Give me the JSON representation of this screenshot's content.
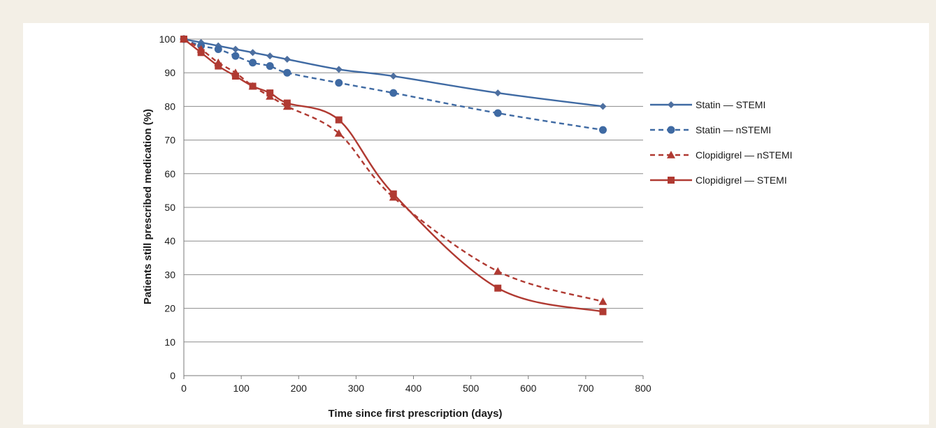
{
  "chart_data": {
    "type": "line",
    "xlabel": "Time since first prescription (days)",
    "ylabel": "Patients still prescribed medication (%)",
    "xlim": [
      0,
      800
    ],
    "ylim": [
      0,
      100
    ],
    "xticks": [
      "0",
      "100",
      "200",
      "300",
      "400",
      "500",
      "600",
      "700",
      "800"
    ],
    "yticks": [
      "0",
      "10",
      "20",
      "30",
      "40",
      "50",
      "60",
      "70",
      "80",
      "90",
      "100"
    ],
    "grid": "horizontal",
    "legend_position": "right",
    "series": [
      {
        "name": "Statin — STEMI",
        "color": "#3f6aa3",
        "dash": "solid",
        "marker": "diamond",
        "x": [
          0,
          30,
          60,
          90,
          120,
          150,
          180,
          270,
          365,
          547,
          730
        ],
        "y": [
          100,
          99,
          98,
          97,
          96,
          95,
          94,
          91,
          89,
          84,
          80
        ]
      },
      {
        "name": "Statin — nSTEMI",
        "color": "#3f6aa3",
        "dash": "dashed",
        "marker": "circle",
        "x": [
          0,
          30,
          60,
          90,
          120,
          150,
          180,
          270,
          365,
          547,
          730
        ],
        "y": [
          100,
          98,
          97,
          95,
          93,
          92,
          90,
          87,
          84,
          78,
          73
        ]
      },
      {
        "name": "Clopidigrel — nSTEMI",
        "color": "#b03a32",
        "dash": "dashed",
        "marker": "triangle",
        "x": [
          0,
          30,
          60,
          90,
          120,
          150,
          180,
          270,
          365,
          547,
          730
        ],
        "y": [
          100,
          97,
          93,
          90,
          86,
          83,
          80,
          72,
          53,
          31,
          22
        ]
      },
      {
        "name": "Clopidigrel — STEMI",
        "color": "#b03a32",
        "dash": "solid",
        "marker": "square",
        "x": [
          0,
          30,
          60,
          90,
          120,
          150,
          180,
          270,
          365,
          547,
          730
        ],
        "y": [
          100,
          96,
          92,
          89,
          86,
          84,
          81,
          76,
          54,
          26,
          19
        ]
      }
    ]
  }
}
